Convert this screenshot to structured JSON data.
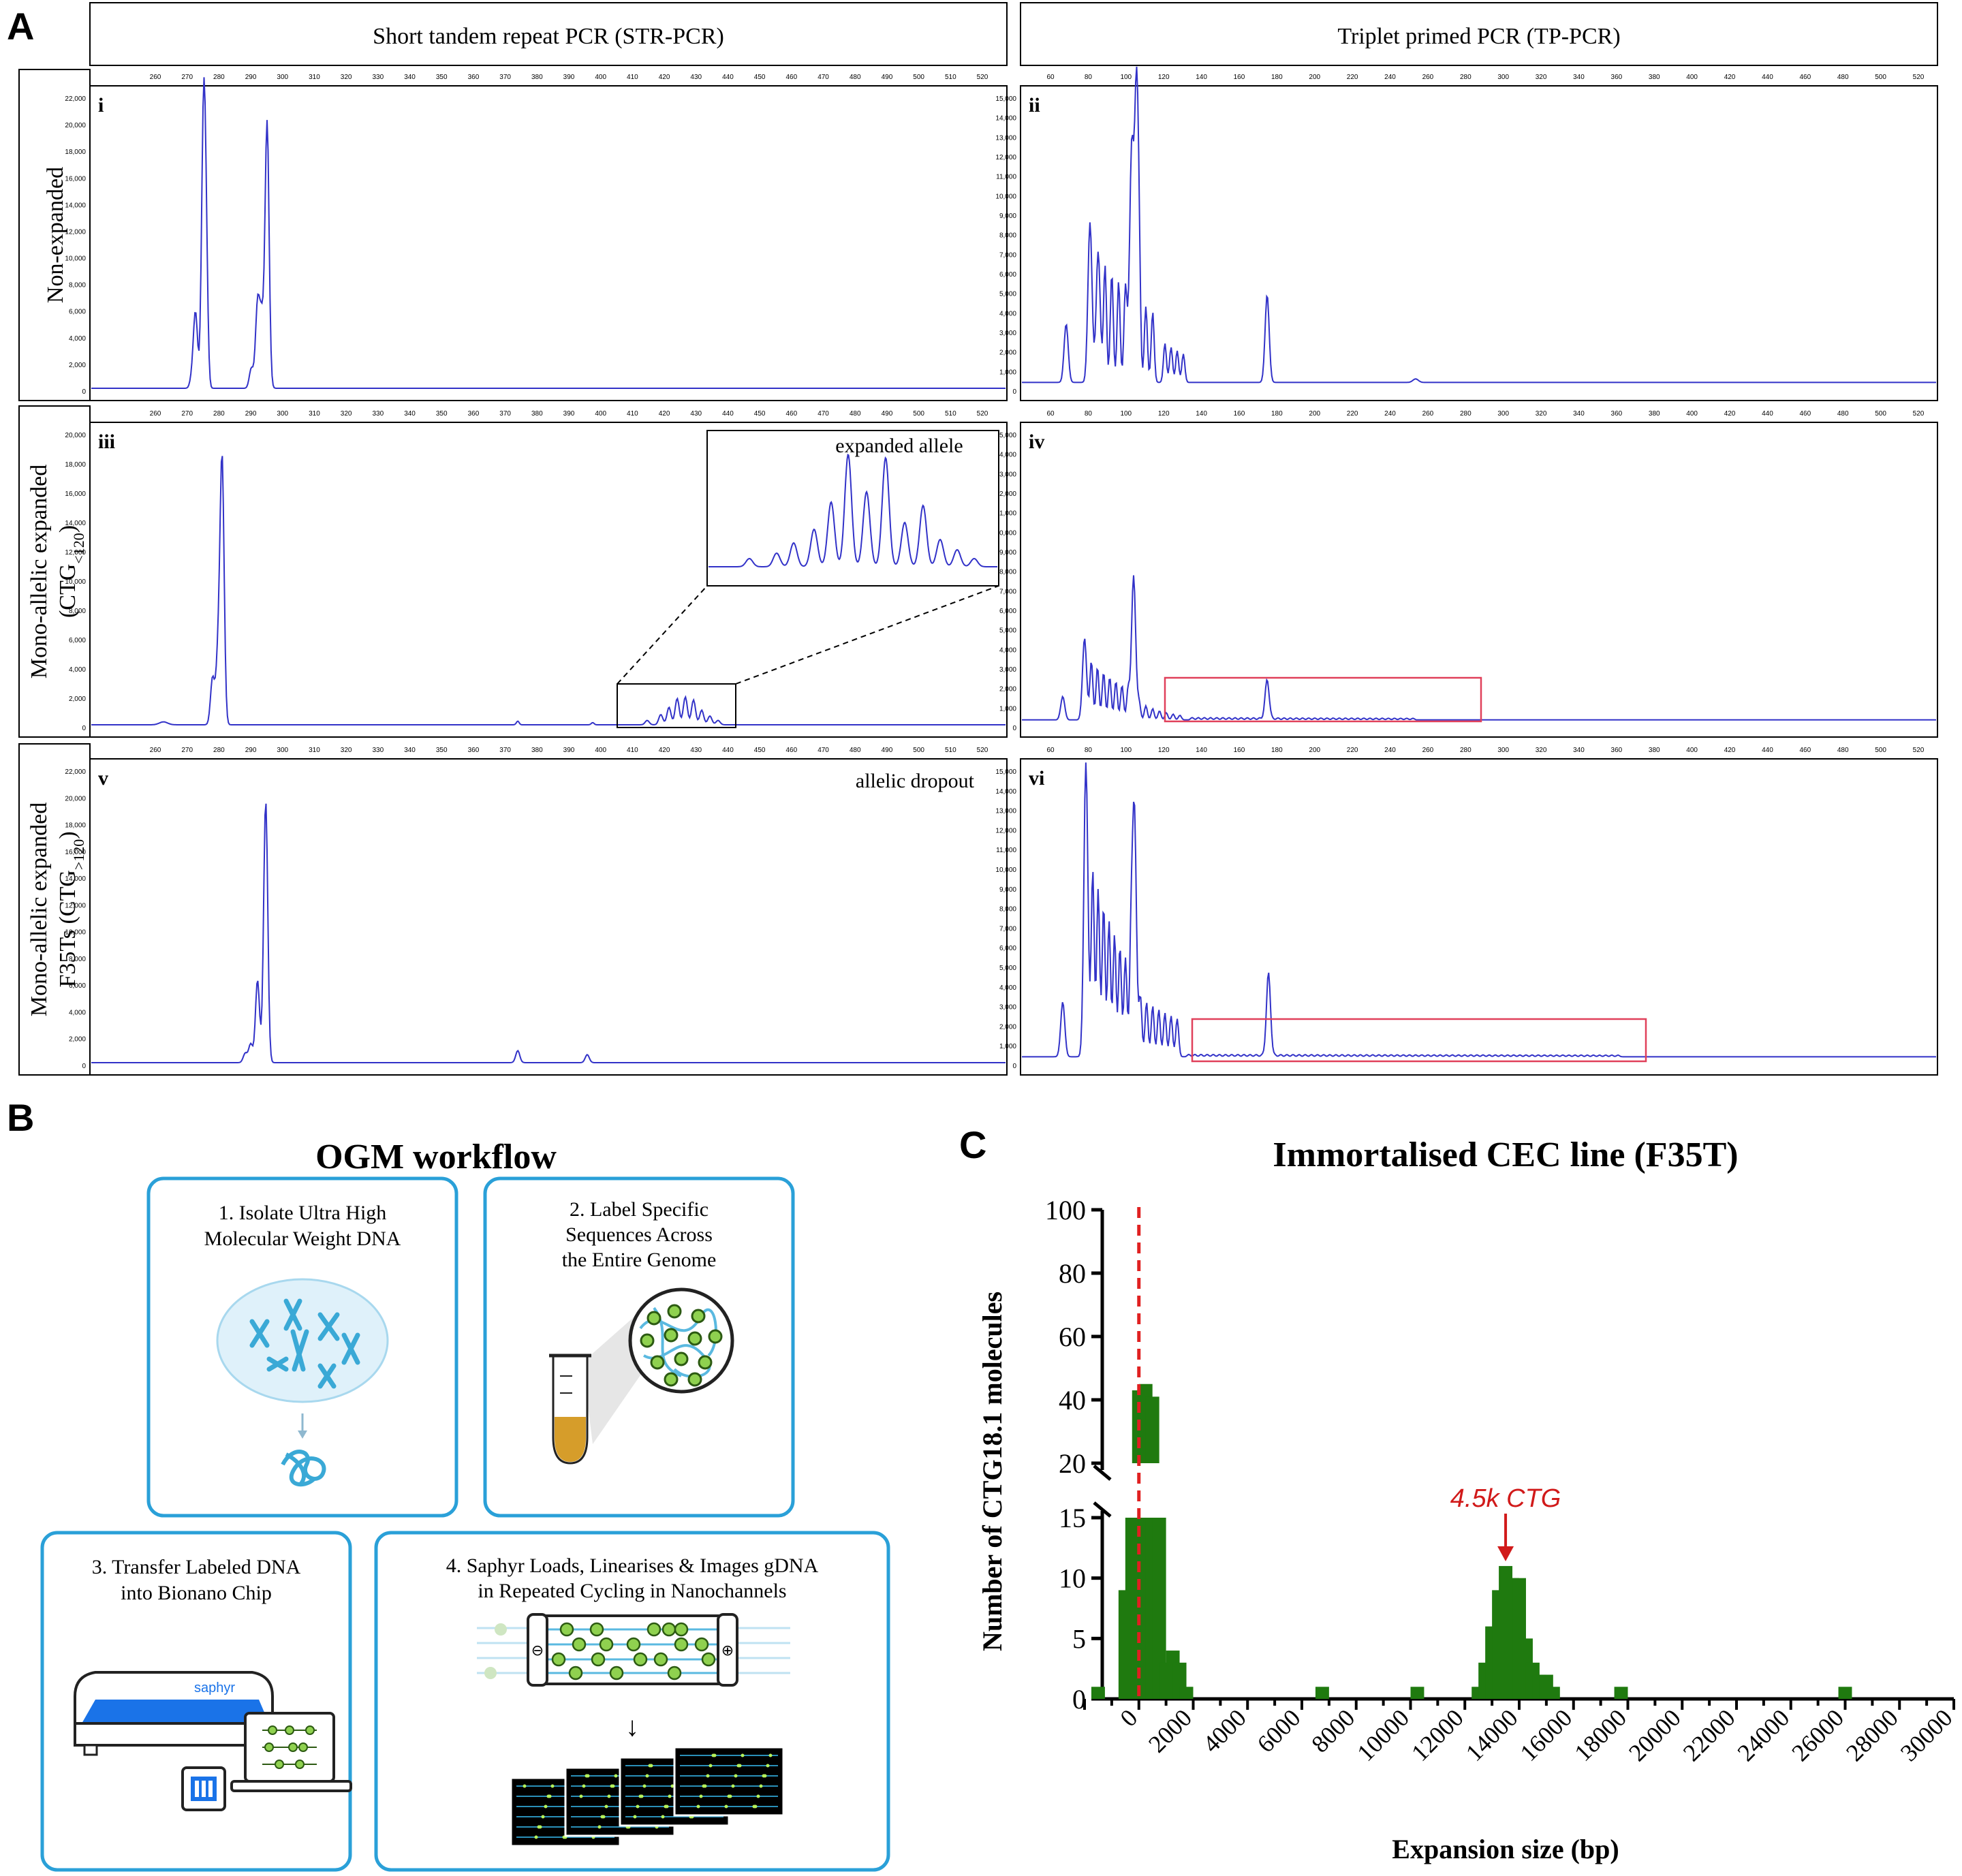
{
  "figure": {
    "panel_A_letter": "A",
    "panel_B_letter": "B",
    "panel_C_letter": "C",
    "columns": {
      "left_header": "Short tandem repeat PCR (STR-PCR)",
      "right_header": "Triplet primed PCR (TP-PCR)"
    },
    "rows": {
      "row1": [
        "Non-expanded"
      ],
      "row2_line1": "Mono-allelic expanded",
      "row2_line2_prefix": "(CTG",
      "row2_line2_sub": "<120",
      "row2_line2_suffix": ")",
      "row3_line1": "Mono-allelic expanded",
      "row3_line2_prefix": "F35Ts (CTG",
      "row3_line2_sub": ">120",
      "row3_line2_suffix": ")"
    },
    "subpanels": {
      "i": "i",
      "ii": "ii",
      "iii": "iii",
      "iv": "iv",
      "v": "v",
      "vi": "vi"
    },
    "annotations": {
      "expanded_allele": "expanded allele",
      "allelic_dropout": "allelic dropout"
    },
    "str_x_ticks": [
      "260",
      "270",
      "280",
      "290",
      "300",
      "310",
      "320",
      "330",
      "340",
      "350",
      "360",
      "370",
      "380",
      "390",
      "400",
      "410",
      "420",
      "430",
      "440",
      "450",
      "460",
      "470",
      "480",
      "490",
      "500",
      "510",
      "520"
    ],
    "tp_x_ticks": [
      "60",
      "80",
      "100",
      "120",
      "140",
      "160",
      "180",
      "200",
      "220",
      "240",
      "260",
      "280",
      "300",
      "320",
      "340",
      "360",
      "380",
      "400",
      "420",
      "440",
      "460",
      "480",
      "500",
      "520"
    ],
    "y_ticks_22000": [
      "0",
      "2,000",
      "4,000",
      "6,000",
      "8,000",
      "10,000",
      "12,000",
      "14,000",
      "16,000",
      "18,000",
      "20,000",
      "22,000"
    ],
    "y_ticks_20000": [
      "0",
      "2,000",
      "4,000",
      "6,000",
      "8,000",
      "10,000",
      "12,000",
      "14,000",
      "16,000",
      "18,000",
      "20,000"
    ],
    "y_ticks_15000": [
      "0",
      "1,000",
      "2,000",
      "3,000",
      "4,000",
      "5,000",
      "6,000",
      "7,000",
      "8,000",
      "9,000",
      "10,000",
      "11,000",
      "12,000",
      "13,000",
      "14,000",
      "15,000"
    ],
    "colors": {
      "trace": "#3232c8",
      "highlight_box": "#e0405a",
      "ogm_border": "#2aa0d8",
      "bar": "#1f7a0f",
      "reference_line": "#e02020",
      "arrow_label": "#d11a1a"
    }
  },
  "ogm": {
    "title": "OGM workflow",
    "step1_line1": "1. Isolate Ultra High",
    "step1_line2": "Molecular Weight DNA",
    "step2_line1": "2. Label Specific",
    "step2_line2": "Sequences Across",
    "step2_line3": "the Entire Genome",
    "step3_line1": "3. Transfer Labeled DNA",
    "step3_line2": "into Bionano Chip",
    "step4_line1": "4. Saphyr Loads, Linearises & Images gDNA",
    "step4_line2": "in Repeated Cycling in Nanochannels",
    "device_label": "saphyr",
    "minus_sign": "⊖",
    "plus_sign": "⊕",
    "down_arrow": "↓"
  },
  "chart_data": {
    "type": "bar",
    "title": "Immortalised CEC line (F35T)",
    "xlabel": "Expansion size (bp)",
    "ylabel": "Number of CTG18.1 molecules",
    "x_ticks": [
      "0",
      "2000",
      "4000",
      "6000",
      "8000",
      "10000",
      "12000",
      "14000",
      "16000",
      "18000",
      "20000",
      "22000",
      "24000",
      "26000",
      "28000",
      "30000"
    ],
    "y_ticks_lower": [
      "0",
      "5",
      "10",
      "15"
    ],
    "y_ticks_upper": [
      "20",
      "40",
      "60",
      "80",
      "100"
    ],
    "ylim": [
      0,
      100
    ],
    "y_axis_break": [
      15,
      20
    ],
    "xlim": [
      -2000,
      30000
    ],
    "bin_width": 500,
    "reference_line_x": 0,
    "annotation": {
      "text": "4.5k CTG",
      "x": 13500
    },
    "bins_x": [
      -1500,
      -500,
      -250,
      0,
      250,
      500,
      750,
      1000,
      1250,
      1500,
      1750,
      6750,
      10250,
      12500,
      12750,
      13000,
      13250,
      13500,
      13750,
      14000,
      14250,
      14500,
      14750,
      15000,
      15250,
      17750,
      26000
    ],
    "bins_y": [
      1,
      9,
      15,
      43,
      45,
      41,
      15,
      3,
      4,
      3,
      1,
      1,
      1,
      1,
      3,
      6,
      9,
      11,
      10,
      10,
      5,
      3,
      2,
      2,
      1,
      1,
      1
    ]
  }
}
